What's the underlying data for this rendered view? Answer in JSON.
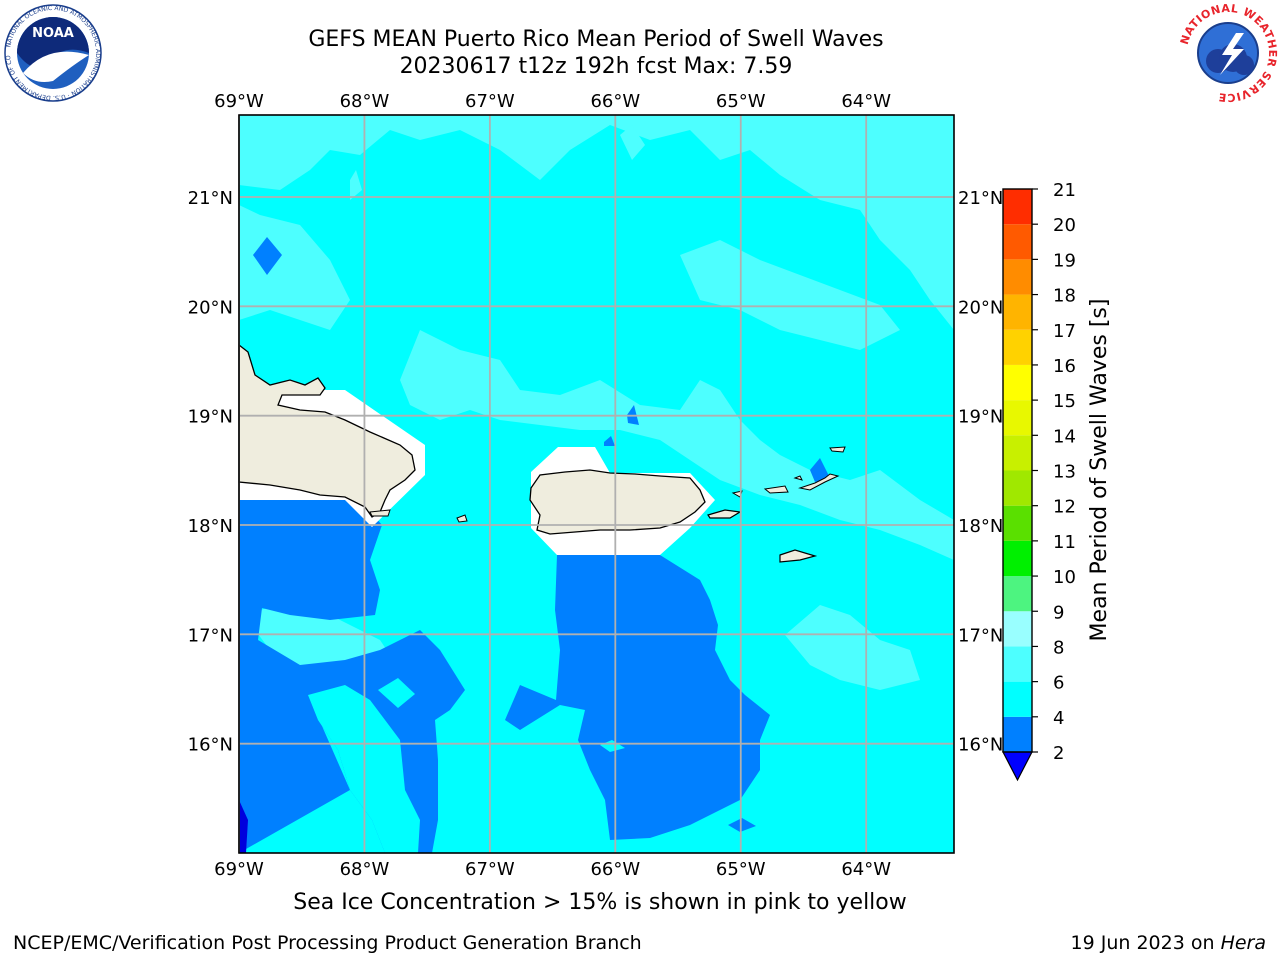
{
  "header": {
    "title_line1": "GEFS MEAN Puerto Rico Mean Period of Swell Waves",
    "title_line2": "20230617 t12z 192h fcst   Max: 7.59"
  },
  "map": {
    "lon_ticks": [
      "69°W",
      "68°W",
      "67°W",
      "66°W",
      "65°W",
      "64°W"
    ],
    "lat_ticks": [
      "21°N",
      "20°N",
      "19°N",
      "18°N",
      "17°N",
      "16°N"
    ],
    "lon_range": [
      -69.0,
      -63.3
    ],
    "lat_range": [
      15.0,
      21.75
    ],
    "fill_levels": [
      {
        "range": [
          2,
          4
        ],
        "color": "#0080ff"
      },
      {
        "range": [
          4,
          6
        ],
        "color": "#00ffff"
      },
      {
        "range": [
          6,
          8
        ],
        "color": "#4dffff"
      }
    ],
    "land_color": "#efedde",
    "grid": true
  },
  "colorbar": {
    "label": "Mean Period of Swell Waves [s]",
    "ticks": [
      "2",
      "4",
      "6",
      "8",
      "9",
      "10",
      "11",
      "12",
      "13",
      "14",
      "15",
      "16",
      "17",
      "18",
      "19",
      "20",
      "21"
    ],
    "colors": [
      "#0080ff",
      "#00ffff",
      "#4dffff",
      "#99ffff",
      "#4df480",
      "#00f000",
      "#5ae000",
      "#a0e800",
      "#c8f000",
      "#e8f800",
      "#ffff00",
      "#ffd200",
      "#ffb400",
      "#ff8c00",
      "#ff5a00",
      "#ff2d00",
      "#ff0000"
    ],
    "extend_color": "#0000ff"
  },
  "caption": "Sea Ice Concentration > 15% is shown in pink to yellow",
  "footer": {
    "left": "NCEP/EMC/Verification Post Processing Product Generation Branch",
    "right_date": "19 Jun 2023 on ",
    "right_host": "Hera"
  },
  "logos": {
    "noaa_text": "NOAA",
    "noaa_ring": "NATIONAL OCEANIC AND ATMOSPHERIC ADMINISTRATION · U.S. DEPARTMENT OF COMMERCE",
    "nws_ring": "NATIONAL WEATHER SERVICE"
  }
}
